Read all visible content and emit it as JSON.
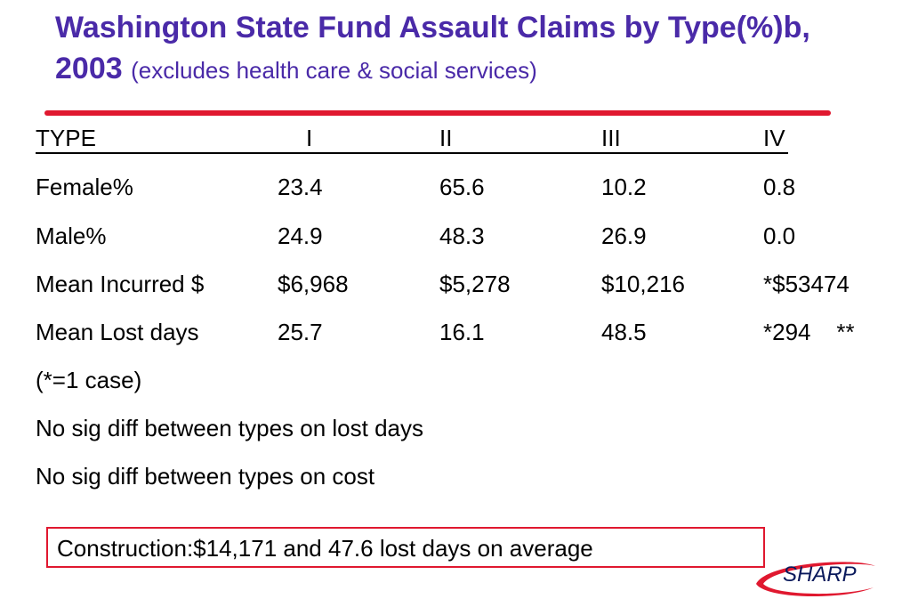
{
  "title": {
    "main": "Washington State Fund Assault Claims by Type(%)b, 2003",
    "sub": "(excludes health care & social services)"
  },
  "table": {
    "headers": [
      "TYPE",
      "I",
      "II",
      "III",
      "IV"
    ],
    "rows": [
      [
        "Female%",
        "23.4",
        "65.6",
        "10.2",
        "0.8"
      ],
      [
        "Male%",
        "24.9",
        "48.3",
        "26.9",
        "0.0"
      ],
      [
        "Mean Incurred $",
        "$6,968",
        "$5,278",
        "$10,216",
        "*$53474"
      ],
      [
        "Mean Lost days",
        "25.7",
        "16.1",
        "48.5",
        "*294    **"
      ]
    ]
  },
  "notes": [
    "(*=1 case)",
    "No sig diff between types on lost days",
    "No sig diff between types on cost"
  ],
  "callout": "Construction:$14,171 and 47.6 lost days on average",
  "logo": {
    "text": "SHARP",
    "colors": {
      "swoosh": "#e0182f",
      "text": "#0a1a5c"
    }
  },
  "colors": {
    "title": "#4a2aa8",
    "accent": "#e0182f"
  }
}
